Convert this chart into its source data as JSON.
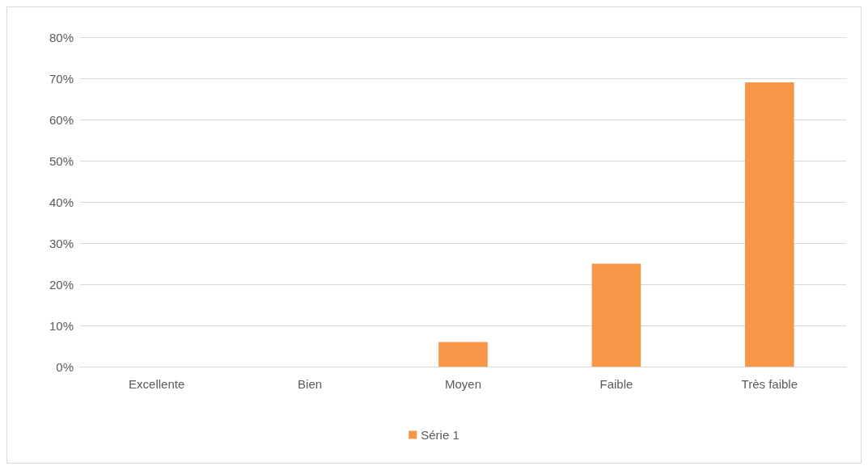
{
  "chart_data": {
    "type": "bar",
    "categories": [
      "Excellente",
      "Bien",
      "Moyen",
      "Faible",
      "Très faible"
    ],
    "series": [
      {
        "name": "Série 1",
        "color": "#f79646",
        "values": [
          0,
          0,
          6,
          25,
          69
        ]
      }
    ],
    "ylim": [
      0,
      80
    ],
    "yticks": [
      {
        "value": 0,
        "label": "0%"
      },
      {
        "value": 10,
        "label": "10%"
      },
      {
        "value": 20,
        "label": "20%"
      },
      {
        "value": 30,
        "label": "30%"
      },
      {
        "value": 40,
        "label": "40%"
      },
      {
        "value": 50,
        "label": "50%"
      },
      {
        "value": 60,
        "label": "60%"
      },
      {
        "value": 70,
        "label": "70%"
      },
      {
        "value": 80,
        "label": "80%"
      }
    ],
    "grid": "y",
    "legend": "bottom"
  }
}
